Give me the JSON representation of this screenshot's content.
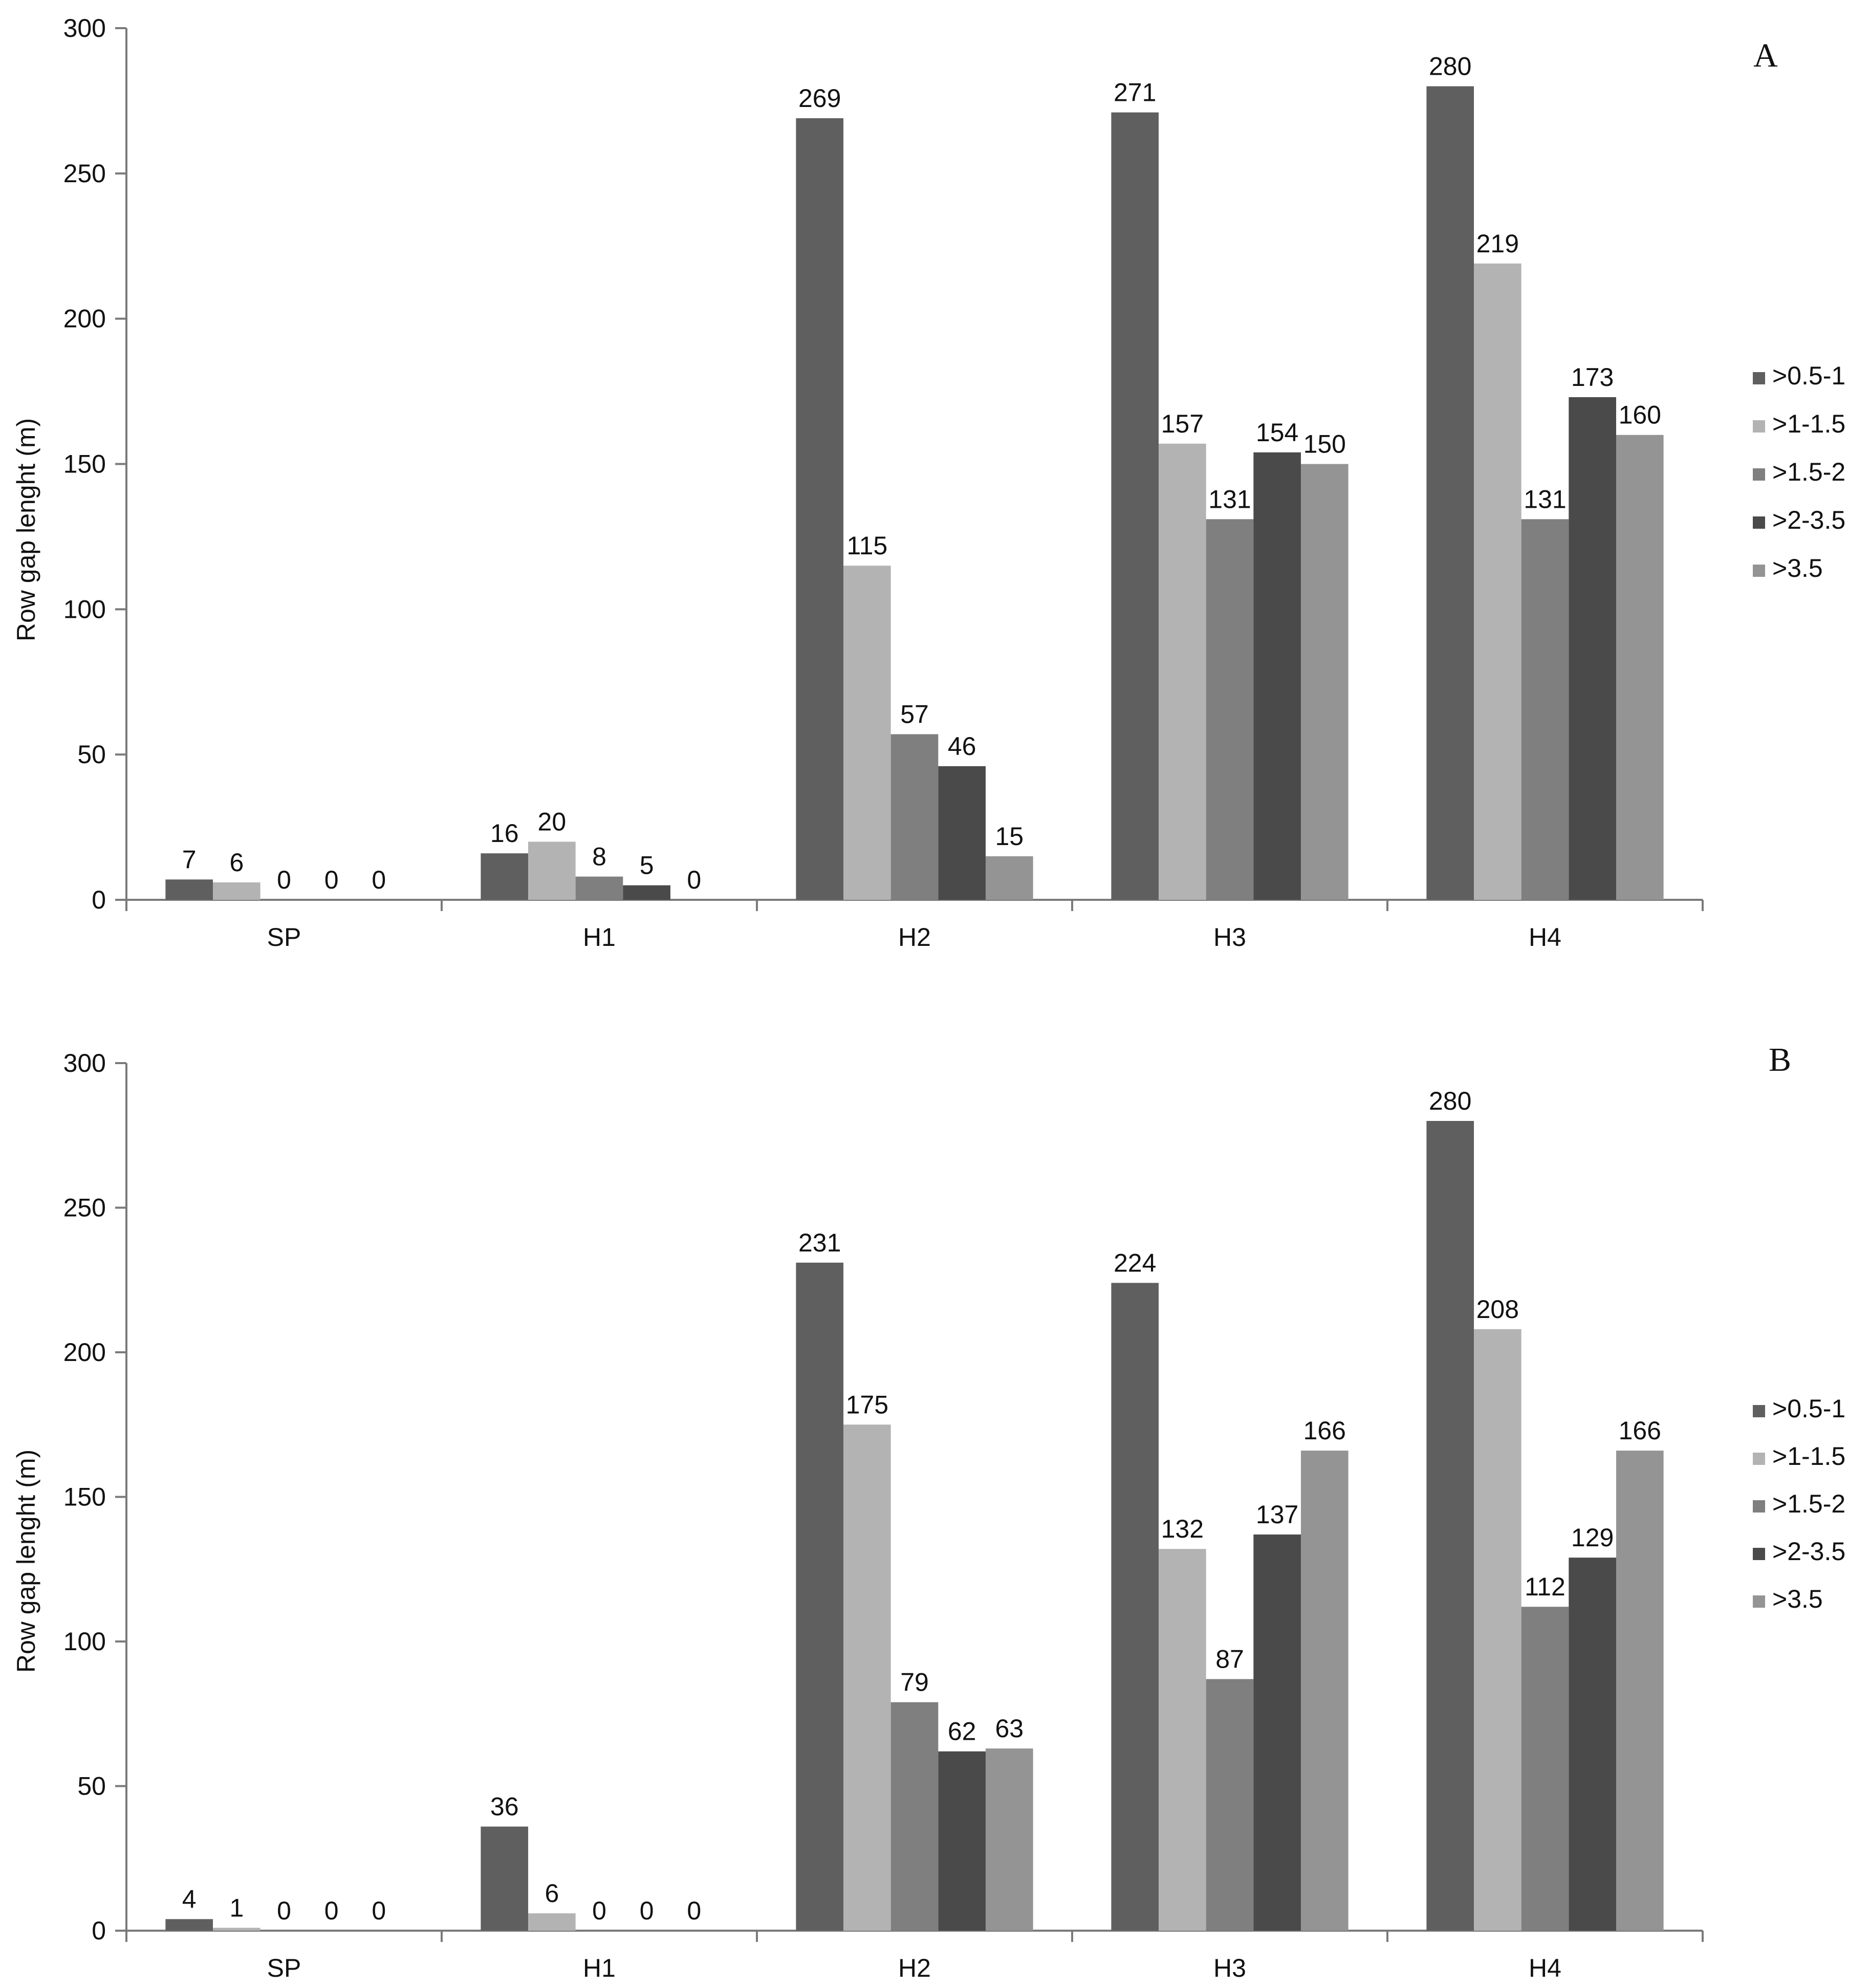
{
  "chart_data": [
    {
      "type": "bar",
      "panel_label": "A",
      "categories": [
        "SP",
        "H1",
        "H2",
        "H3",
        "H4"
      ],
      "ylabel": "Row gap lenght (m)",
      "ylim": [
        0,
        300
      ],
      "yticks": [
        0,
        50,
        100,
        150,
        200,
        250,
        300
      ],
      "legend_position": "right",
      "series": [
        {
          "name": ">0.5-1",
          "color": "#5f5f5f",
          "values": [
            7,
            16,
            269,
            271,
            280
          ]
        },
        {
          "name": ">1-1.5",
          "color": "#b3b3b3",
          "values": [
            6,
            20,
            115,
            157,
            219
          ]
        },
        {
          "name": ">1.5-2",
          "color": "#7f7f7f",
          "values": [
            0,
            8,
            57,
            131,
            131
          ]
        },
        {
          "name": ">2-3.5",
          "color": "#4a4a4a",
          "values": [
            0,
            5,
            46,
            154,
            173
          ]
        },
        {
          "name": ">3.5",
          "color": "#949494",
          "values": [
            0,
            0,
            15,
            150,
            160
          ]
        }
      ]
    },
    {
      "type": "bar",
      "panel_label": "B",
      "categories": [
        "SP",
        "H1",
        "H2",
        "H3",
        "H4"
      ],
      "ylabel": "Row gap lenght (m)",
      "ylim": [
        0,
        300
      ],
      "yticks": [
        0,
        50,
        100,
        150,
        200,
        250,
        300
      ],
      "legend_position": "right",
      "series": [
        {
          "name": ">0.5-1",
          "color": "#5f5f5f",
          "values": [
            4,
            36,
            231,
            224,
            280
          ]
        },
        {
          "name": ">1-1.5",
          "color": "#b3b3b3",
          "values": [
            1,
            6,
            175,
            132,
            208
          ]
        },
        {
          "name": ">1.5-2",
          "color": "#7f7f7f",
          "values": [
            0,
            0,
            79,
            87,
            112
          ]
        },
        {
          "name": ">2-3.5",
          "color": "#4a4a4a",
          "values": [
            0,
            0,
            62,
            137,
            129
          ]
        },
        {
          "name": ">3.5",
          "color": "#949494",
          "values": [
            0,
            0,
            63,
            166,
            166
          ]
        }
      ]
    }
  ]
}
